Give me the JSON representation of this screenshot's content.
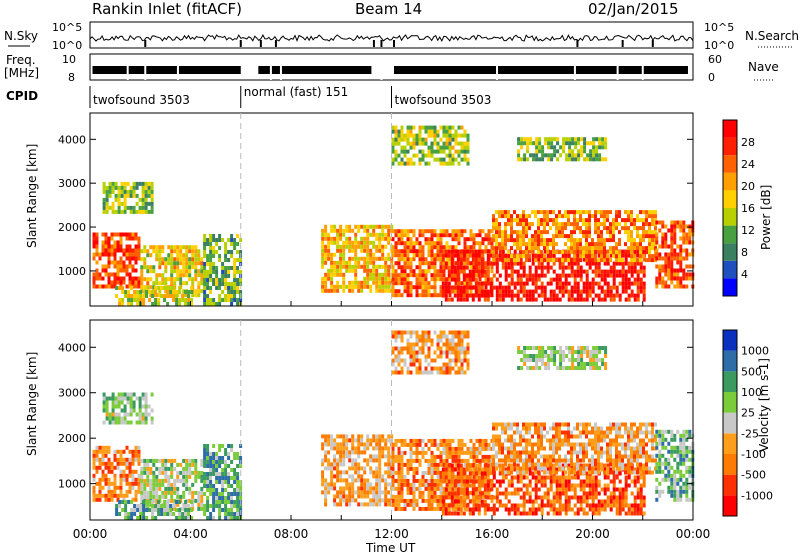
{
  "header": {
    "title": "Rankin Inlet (fitACF)",
    "beam": "Beam 14",
    "date": "02/Jan/2015"
  },
  "top_panels": {
    "nsky_label": "N.Sky",
    "nsearch_label": "N.Search",
    "count_tick_high": "10^5",
    "count_tick_low": "10^0",
    "freq_label_line1": "Freq.",
    "freq_label_line2": "[MHz]",
    "freq_tick_high": "10",
    "freq_tick_low": "8",
    "nave_label": "Nave",
    "nave_tick_high": "60",
    "nave_tick_low": "0",
    "cpid_label": "CPID"
  },
  "cpid_segments": [
    {
      "label": "twofsound 3503",
      "start_h": 0,
      "end_h": 6
    },
    {
      "label": "normal (fast) 151",
      "start_h": 6,
      "end_h": 12
    },
    {
      "label": "twofsound 3503",
      "start_h": 12,
      "end_h": 24
    }
  ],
  "colors": {
    "power_scale": [
      "#0000ff",
      "#1f4fbf",
      "#3a7f5f",
      "#48a040",
      "#b8d000",
      "#ffd000",
      "#ff9f00",
      "#ff6000",
      "#ff2000",
      "#ff0000"
    ],
    "velocity_scale": [
      "#0a30c0",
      "#2e6ea8",
      "#3a9a60",
      "#7acc3a",
      "#c8c8c8",
      "#ff9e1a",
      "#ff7a00",
      "#ff3000",
      "#ff0000"
    ]
  },
  "chart_data": [
    {
      "type": "heatmap",
      "quantity": "Power",
      "xlabel": "Time UT",
      "ylabel": "Slant Range [km]",
      "colorbar_label": "Power [dB]",
      "colorbar_ticks": [
        "4",
        "8",
        "12",
        "16",
        "20",
        "24",
        "28"
      ],
      "xlim_h": [
        0,
        24
      ],
      "ylim_km": [
        200,
        4600
      ],
      "yticks": [
        "1000",
        "2000",
        "3000",
        "4000"
      ],
      "xticks": [
        "00:00",
        "04:00",
        "08:00",
        "12:00",
        "16:00",
        "20:00",
        "00:00"
      ],
      "regions": [
        {
          "t0": 0.1,
          "t1": 2.0,
          "r0": 600,
          "r1": 1800,
          "level": 0.8
        },
        {
          "t0": 2.0,
          "t1": 4.5,
          "r0": 400,
          "r1": 1500,
          "level": 0.55
        },
        {
          "t0": 1.0,
          "t1": 4.0,
          "r0": 200,
          "r1": 600,
          "level": 0.5
        },
        {
          "t0": 4.5,
          "t1": 6.0,
          "r0": 200,
          "r1": 1800,
          "level": 0.35
        },
        {
          "t0": 9.2,
          "t1": 12.0,
          "r0": 500,
          "r1": 2000,
          "level": 0.6
        },
        {
          "t0": 12.0,
          "t1": 16.0,
          "r0": 400,
          "r1": 1900,
          "level": 0.75
        },
        {
          "t0": 14.0,
          "t1": 22.0,
          "r0": 300,
          "r1": 1400,
          "level": 0.92
        },
        {
          "t0": 16.0,
          "t1": 22.5,
          "r0": 1200,
          "r1": 2300,
          "level": 0.7
        },
        {
          "t0": 22.5,
          "t1": 24.0,
          "r0": 600,
          "r1": 2100,
          "level": 0.8
        },
        {
          "t0": 12.0,
          "t1": 15.0,
          "r0": 3400,
          "r1": 4300,
          "level": 0.45
        },
        {
          "t0": 17.0,
          "t1": 20.5,
          "r0": 3500,
          "r1": 4000,
          "level": 0.4
        },
        {
          "t0": 0.5,
          "t1": 2.5,
          "r0": 2300,
          "r1": 3000,
          "level": 0.4
        }
      ]
    },
    {
      "type": "heatmap",
      "quantity": "Velocity",
      "xlabel": "Time UT",
      "ylabel": "Slant Range [km]",
      "colorbar_label": "Velocity [m s-1]",
      "colorbar_ticks": [
        "1000",
        "500",
        "100",
        "25",
        "-25",
        "-100",
        "-500",
        "-1000"
      ],
      "xlim_h": [
        0,
        24
      ],
      "ylim_km": [
        200,
        4600
      ],
      "yticks": [
        "1000",
        "2000",
        "3000",
        "4000"
      ],
      "xticks": [
        "00:00",
        "04:00",
        "08:00",
        "12:00",
        "16:00",
        "20:00",
        "00:00"
      ],
      "regions": [
        {
          "t0": 0.1,
          "t1": 2.0,
          "r0": 600,
          "r1": 1800,
          "level": 0.68
        },
        {
          "t0": 2.0,
          "t1": 4.5,
          "r0": 400,
          "r1": 1500,
          "level": 0.45
        },
        {
          "t0": 1.0,
          "t1": 4.0,
          "r0": 200,
          "r1": 600,
          "level": 0.35
        },
        {
          "t0": 4.5,
          "t1": 6.0,
          "r0": 200,
          "r1": 1800,
          "level": 0.3
        },
        {
          "t0": 9.2,
          "t1": 12.0,
          "r0": 500,
          "r1": 2000,
          "level": 0.62
        },
        {
          "t0": 12.0,
          "t1": 16.0,
          "r0": 400,
          "r1": 1900,
          "level": 0.7
        },
        {
          "t0": 14.0,
          "t1": 22.0,
          "r0": 300,
          "r1": 1400,
          "level": 0.78
        },
        {
          "t0": 16.0,
          "t1": 22.5,
          "r0": 1200,
          "r1": 2300,
          "level": 0.65
        },
        {
          "t0": 22.5,
          "t1": 24.0,
          "r0": 600,
          "r1": 2100,
          "level": 0.35
        },
        {
          "t0": 12.0,
          "t1": 15.0,
          "r0": 3400,
          "r1": 4300,
          "level": 0.65
        },
        {
          "t0": 17.0,
          "t1": 20.5,
          "r0": 3500,
          "r1": 4000,
          "level": 0.45
        },
        {
          "t0": 0.5,
          "t1": 2.5,
          "r0": 2300,
          "r1": 3000,
          "level": 0.4
        }
      ]
    }
  ]
}
